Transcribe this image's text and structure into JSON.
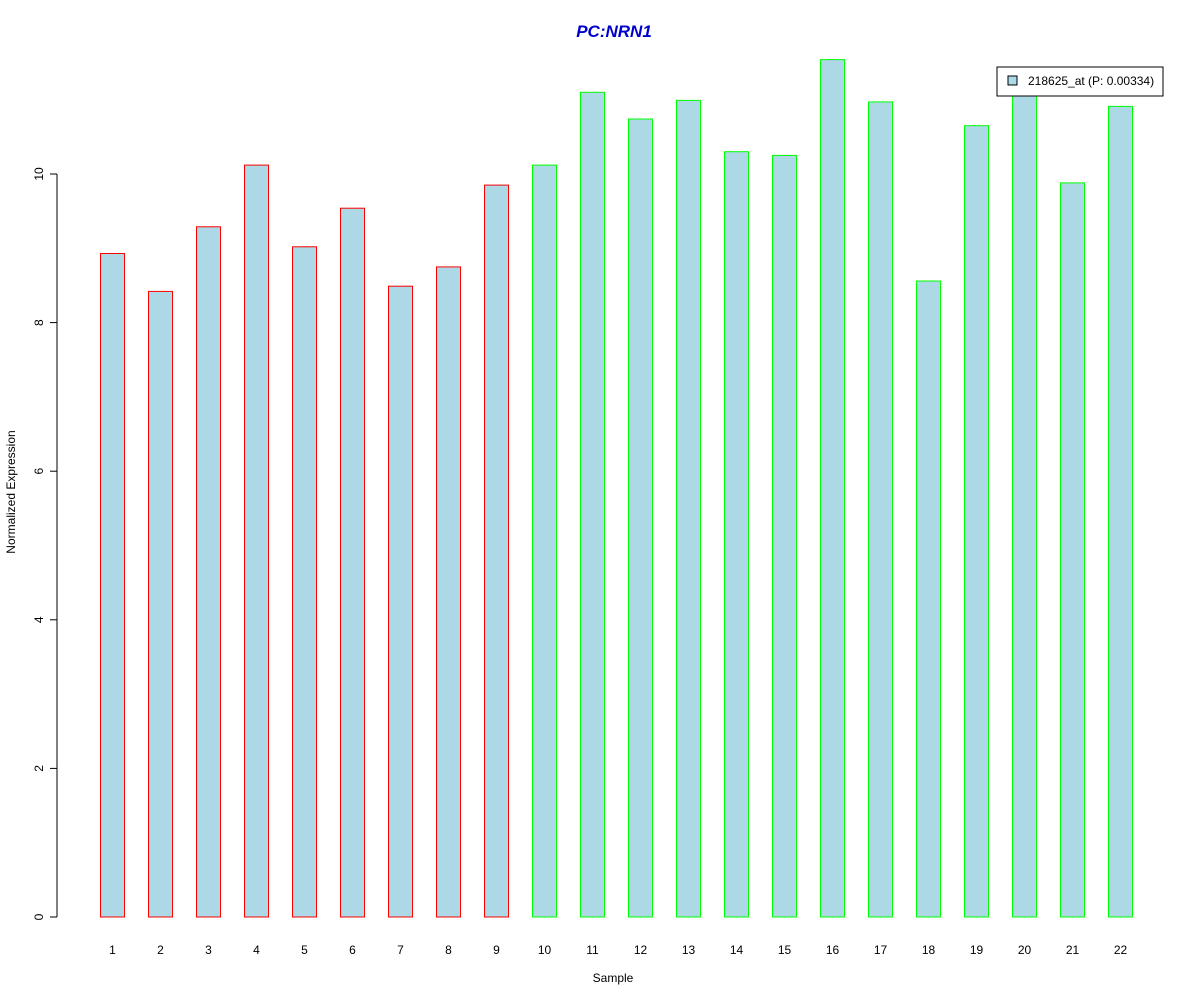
{
  "chart_data": {
    "type": "bar",
    "title": "PC:NRN1",
    "xlabel": "Sample",
    "ylabel": "Normalized Expression",
    "categories": [
      "1",
      "2",
      "3",
      "4",
      "5",
      "6",
      "7",
      "8",
      "9",
      "10",
      "11",
      "12",
      "13",
      "14",
      "15",
      "16",
      "17",
      "18",
      "19",
      "20",
      "21",
      "22"
    ],
    "series": [
      {
        "name": "218625_at (P: 0.00334)",
        "values": [
          8.93,
          8.42,
          9.29,
          10.12,
          9.02,
          9.54,
          8.49,
          8.75,
          9.85,
          10.12,
          11.1,
          10.74,
          10.99,
          10.3,
          10.25,
          11.54,
          10.97,
          8.56,
          10.65,
          11.15,
          9.88,
          10.91
        ]
      }
    ],
    "group_edge_colors": [
      "#ff0000",
      "#ff0000",
      "#ff0000",
      "#ff0000",
      "#ff0000",
      "#ff0000",
      "#ff0000",
      "#ff0000",
      "#ff0000",
      "#00ff00",
      "#00ff00",
      "#00ff00",
      "#00ff00",
      "#00ff00",
      "#00ff00",
      "#00ff00",
      "#00ff00",
      "#00ff00",
      "#00ff00",
      "#00ff00",
      "#00ff00",
      "#00ff00"
    ],
    "bar_fill_color": "#add8e6",
    "title_color": "#0000cd",
    "yticks": [
      0,
      2,
      4,
      6,
      8,
      10
    ],
    "ylim": [
      0,
      11.54
    ],
    "grid": false,
    "legend_position": "top-right"
  }
}
